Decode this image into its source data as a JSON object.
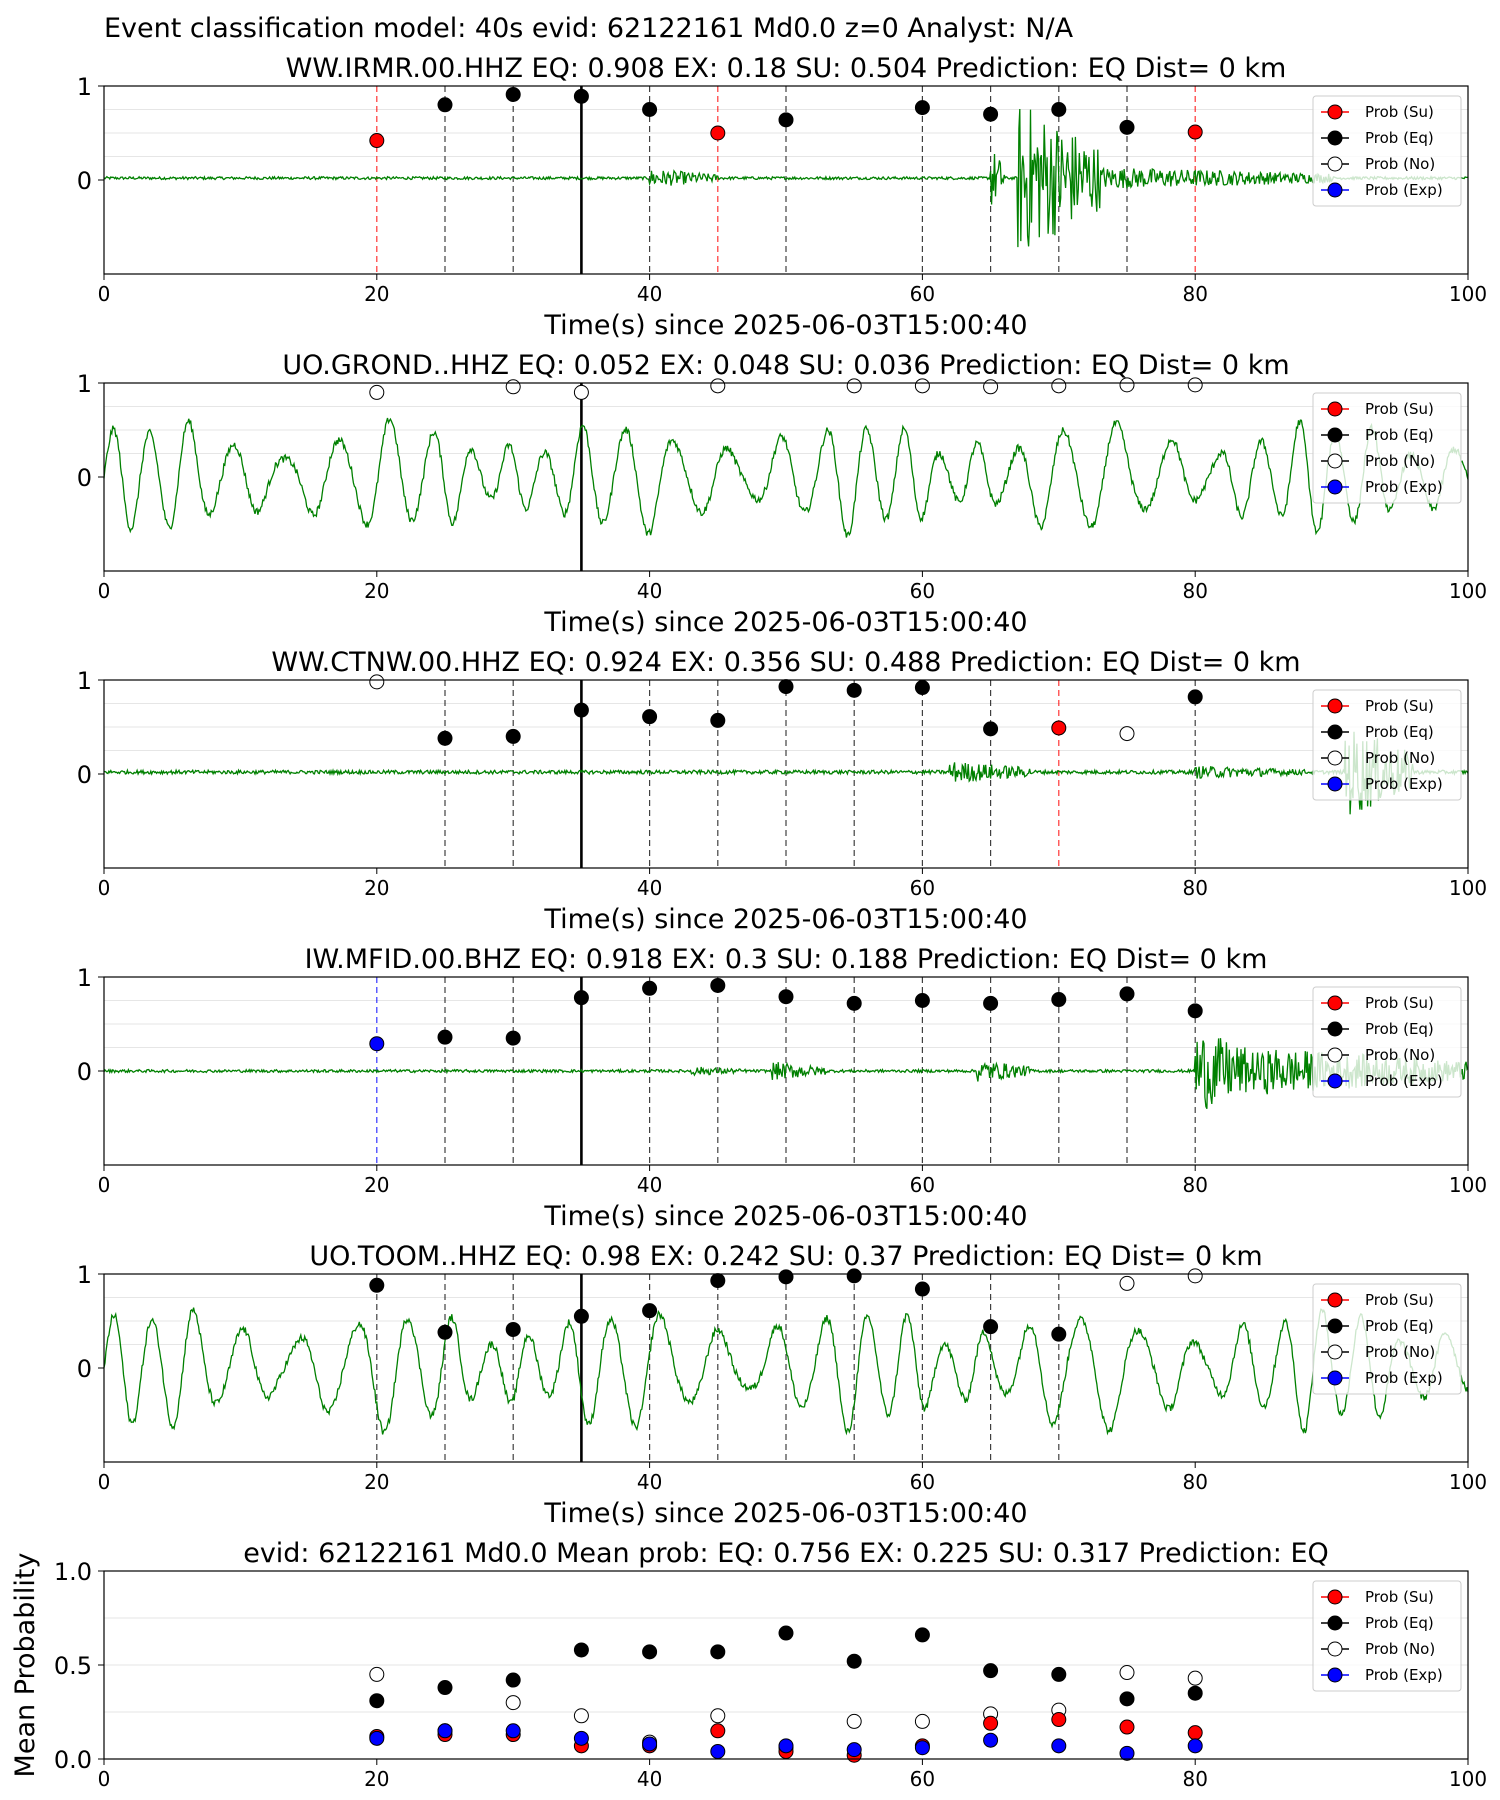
{
  "figure": {
    "suptitle": "Event classification model: 40s evid: 62122161 Md0.0 z=0 Analyst: N/A",
    "xlabel": "Time(s) since 2025-06-03T15:00:40"
  },
  "legend": {
    "entries": [
      {
        "label": "Prob (Su)",
        "color": "#ff0000",
        "fill": "#ff0000"
      },
      {
        "label": "Prob (Eq)",
        "color": "#000000",
        "fill": "#000000"
      },
      {
        "label": "Prob (No)",
        "color": "#000000",
        "fill": "#ffffff"
      },
      {
        "label": "Prob (Exp)",
        "color": "#0000ff",
        "fill": "#0000ff"
      }
    ]
  },
  "colors": {
    "waveform": "#008000",
    "su": "#ff0000",
    "eq": "#000000",
    "no": "#ffffff",
    "exp": "#0000ff",
    "grid": "#e6e6e6"
  },
  "chart_data": [
    {
      "type": "line",
      "title": "WW.IRMR.00.HHZ   EQ: 0.908  EX: 0.18  SU: 0.504   Prediction: EQ    Dist= 0 km",
      "xlim": [
        0,
        100
      ],
      "xticks": [
        0,
        20,
        40,
        60,
        80,
        100
      ],
      "yticks": [
        {
          "v": 0,
          "label": "0"
        },
        {
          "v": 1,
          "label": "1"
        }
      ],
      "xlabel": "Time(s) since 2025-06-03T15:00:40",
      "pick_time": 35,
      "waveform": {
        "style": "burst",
        "baseline": 0.02,
        "noise": 0.015,
        "bursts": [
          [
            40,
            45,
            0.1
          ],
          [
            65,
            66,
            0.35
          ],
          [
            67,
            73,
            0.85
          ],
          [
            73,
            90,
            0.12
          ]
        ]
      },
      "points": [
        {
          "t": 20,
          "cls": "su",
          "p": 0.42
        },
        {
          "t": 25,
          "cls": "eq",
          "p": 0.8
        },
        {
          "t": 30,
          "cls": "eq",
          "p": 0.91
        },
        {
          "t": 35,
          "cls": "eq",
          "p": 0.89
        },
        {
          "t": 40,
          "cls": "eq",
          "p": 0.75
        },
        {
          "t": 45,
          "cls": "su",
          "p": 0.5
        },
        {
          "t": 50,
          "cls": "eq",
          "p": 0.64
        },
        {
          "t": 60,
          "cls": "eq",
          "p": 0.77
        },
        {
          "t": 65,
          "cls": "eq",
          "p": 0.7
        },
        {
          "t": 70,
          "cls": "eq",
          "p": 0.75
        },
        {
          "t": 75,
          "cls": "eq",
          "p": 0.56
        },
        {
          "t": 80,
          "cls": "su",
          "p": 0.51
        }
      ]
    },
    {
      "type": "line",
      "title": "UO.GROND..HHZ   EQ: 0.052  EX: 0.048  SU: 0.036   Prediction: EQ    Dist= 0 km",
      "xlim": [
        0,
        100
      ],
      "xticks": [
        0,
        20,
        40,
        60,
        80,
        100
      ],
      "yticks": [
        {
          "v": 0,
          "label": "0"
        },
        {
          "v": 1,
          "label": "1"
        }
      ],
      "xlabel": "Time(s) since 2025-06-03T15:00:40",
      "pick_time": 35,
      "waveform": {
        "style": "oscillation",
        "baseline": 0.0,
        "amp": 0.55,
        "period": 3.2
      },
      "points": [
        {
          "t": 20,
          "cls": "no",
          "p": 0.9
        },
        {
          "t": 30,
          "cls": "no",
          "p": 0.96
        },
        {
          "t": 35,
          "cls": "no",
          "p": 0.9
        },
        {
          "t": 45,
          "cls": "no",
          "p": 0.97
        },
        {
          "t": 55,
          "cls": "no",
          "p": 0.97
        },
        {
          "t": 60,
          "cls": "no",
          "p": 0.97
        },
        {
          "t": 65,
          "cls": "no",
          "p": 0.96
        },
        {
          "t": 70,
          "cls": "no",
          "p": 0.97
        },
        {
          "t": 75,
          "cls": "no",
          "p": 0.98
        },
        {
          "t": 80,
          "cls": "no",
          "p": 0.98
        }
      ]
    },
    {
      "type": "line",
      "title": "WW.CTNW.00.HHZ   EQ: 0.924  EX: 0.356  SU: 0.488   Prediction: EQ    Dist= 0 km",
      "xlim": [
        0,
        100
      ],
      "xticks": [
        0,
        20,
        40,
        60,
        80,
        100
      ],
      "yticks": [
        {
          "v": 0,
          "label": "0"
        },
        {
          "v": 1,
          "label": "1"
        }
      ],
      "xlabel": "Time(s) since 2025-06-03T15:00:40",
      "pick_time": 35,
      "waveform": {
        "style": "burst",
        "baseline": 0.02,
        "noise": 0.02,
        "bursts": [
          [
            62,
            68,
            0.12
          ],
          [
            80,
            88,
            0.07
          ],
          [
            91,
            96,
            0.5
          ]
        ]
      },
      "points": [
        {
          "t": 20,
          "cls": "no",
          "p": 0.98
        },
        {
          "t": 25,
          "cls": "eq",
          "p": 0.38
        },
        {
          "t": 30,
          "cls": "eq",
          "p": 0.4
        },
        {
          "t": 35,
          "cls": "eq",
          "p": 0.68
        },
        {
          "t": 40,
          "cls": "eq",
          "p": 0.61
        },
        {
          "t": 45,
          "cls": "eq",
          "p": 0.57
        },
        {
          "t": 50,
          "cls": "eq",
          "p": 0.93
        },
        {
          "t": 55,
          "cls": "eq",
          "p": 0.89
        },
        {
          "t": 60,
          "cls": "eq",
          "p": 0.92
        },
        {
          "t": 65,
          "cls": "eq",
          "p": 0.48
        },
        {
          "t": 70,
          "cls": "su",
          "p": 0.49
        },
        {
          "t": 75,
          "cls": "no",
          "p": 0.43
        },
        {
          "t": 80,
          "cls": "eq",
          "p": 0.82
        }
      ]
    },
    {
      "type": "line",
      "title": "IW.MFID.00.BHZ   EQ: 0.918  EX: 0.3  SU: 0.188   Prediction: EQ    Dist= 0 km",
      "xlim": [
        0,
        100
      ],
      "xticks": [
        0,
        20,
        40,
        60,
        80,
        100
      ],
      "yticks": [
        {
          "v": 0,
          "label": "0"
        },
        {
          "v": 1,
          "label": "1"
        }
      ],
      "xlabel": "Time(s) since 2025-06-03T15:00:40",
      "pick_time": 35,
      "waveform": {
        "style": "burst",
        "baseline": 0.0,
        "noise": 0.015,
        "bursts": [
          [
            43,
            47,
            0.05
          ],
          [
            49,
            53,
            0.1
          ],
          [
            64,
            68,
            0.12
          ],
          [
            80,
            85,
            0.45
          ],
          [
            85,
            100,
            0.25
          ]
        ]
      },
      "points": [
        {
          "t": 20,
          "cls": "exp",
          "p": 0.29
        },
        {
          "t": 25,
          "cls": "eq",
          "p": 0.36
        },
        {
          "t": 30,
          "cls": "eq",
          "p": 0.35
        },
        {
          "t": 35,
          "cls": "eq",
          "p": 0.78
        },
        {
          "t": 40,
          "cls": "eq",
          "p": 0.88
        },
        {
          "t": 45,
          "cls": "eq",
          "p": 0.91
        },
        {
          "t": 50,
          "cls": "eq",
          "p": 0.79
        },
        {
          "t": 55,
          "cls": "eq",
          "p": 0.72
        },
        {
          "t": 60,
          "cls": "eq",
          "p": 0.75
        },
        {
          "t": 65,
          "cls": "eq",
          "p": 0.72
        },
        {
          "t": 70,
          "cls": "eq",
          "p": 0.76
        },
        {
          "t": 75,
          "cls": "eq",
          "p": 0.82
        },
        {
          "t": 80,
          "cls": "eq",
          "p": 0.64
        }
      ]
    },
    {
      "type": "line",
      "title": "UO.TOOM..HHZ   EQ: 0.98  EX: 0.242  SU: 0.37   Prediction: EQ    Dist= 0 km",
      "xlim": [
        0,
        100
      ],
      "xticks": [
        0,
        20,
        40,
        60,
        80,
        100
      ],
      "yticks": [
        {
          "v": 0,
          "label": "0"
        },
        {
          "v": 1,
          "label": "1"
        }
      ],
      "xlabel": "Time(s) since 2025-06-03T15:00:40",
      "pick_time": 35,
      "waveform": {
        "style": "oscillation",
        "baseline": 0.0,
        "amp": 0.6,
        "period": 3.4
      },
      "points": [
        {
          "t": 20,
          "cls": "eq",
          "p": 0.88
        },
        {
          "t": 25,
          "cls": "eq",
          "p": 0.38
        },
        {
          "t": 30,
          "cls": "eq",
          "p": 0.41
        },
        {
          "t": 35,
          "cls": "eq",
          "p": 0.55
        },
        {
          "t": 40,
          "cls": "eq",
          "p": 0.61
        },
        {
          "t": 45,
          "cls": "eq",
          "p": 0.93
        },
        {
          "t": 50,
          "cls": "eq",
          "p": 0.97
        },
        {
          "t": 55,
          "cls": "eq",
          "p": 0.98
        },
        {
          "t": 60,
          "cls": "eq",
          "p": 0.84
        },
        {
          "t": 65,
          "cls": "eq",
          "p": 0.44
        },
        {
          "t": 70,
          "cls": "eq",
          "p": 0.36
        },
        {
          "t": 75,
          "cls": "no",
          "p": 0.9
        },
        {
          "t": 80,
          "cls": "no",
          "p": 0.98
        }
      ]
    },
    {
      "type": "scatter",
      "title": "evid: 62122161  Md0.0   Mean prob:   EQ: 0.756  EX: 0.225  SU: 0.317   Prediction: EQ",
      "ylabel": "Mean Probability",
      "xlim": [
        0,
        100
      ],
      "ylim": [
        0,
        1
      ],
      "xticks": [
        0,
        20,
        40,
        60,
        80,
        100
      ],
      "yticks": [
        {
          "v": 0,
          "label": "0.0"
        },
        {
          "v": 0.5,
          "label": "0.5"
        },
        {
          "v": 1,
          "label": "1.0"
        }
      ],
      "x": [
        20,
        25,
        30,
        35,
        40,
        45,
        50,
        55,
        60,
        65,
        70,
        75,
        80
      ],
      "series": [
        {
          "name": "Prob (Su)",
          "cls": "su",
          "values": [
            0.12,
            0.13,
            0.13,
            0.07,
            0.07,
            0.15,
            0.04,
            0.02,
            0.07,
            0.19,
            0.21,
            0.17,
            0.14
          ]
        },
        {
          "name": "Prob (Eq)",
          "cls": "eq",
          "values": [
            0.31,
            0.38,
            0.42,
            0.58,
            0.57,
            0.57,
            0.67,
            0.52,
            0.66,
            0.47,
            0.45,
            0.32,
            0.35
          ]
        },
        {
          "name": "Prob (No)",
          "cls": "no",
          "values": [
            0.45,
            0.15,
            0.3,
            0.23,
            0.09,
            0.23,
            0.06,
            0.2,
            0.2,
            0.24,
            0.26,
            0.46,
            0.43
          ]
        },
        {
          "name": "Prob (Exp)",
          "cls": "exp",
          "values": [
            0.11,
            0.15,
            0.15,
            0.11,
            0.08,
            0.04,
            0.07,
            0.05,
            0.06,
            0.1,
            0.07,
            0.03,
            0.07
          ]
        }
      ]
    }
  ]
}
